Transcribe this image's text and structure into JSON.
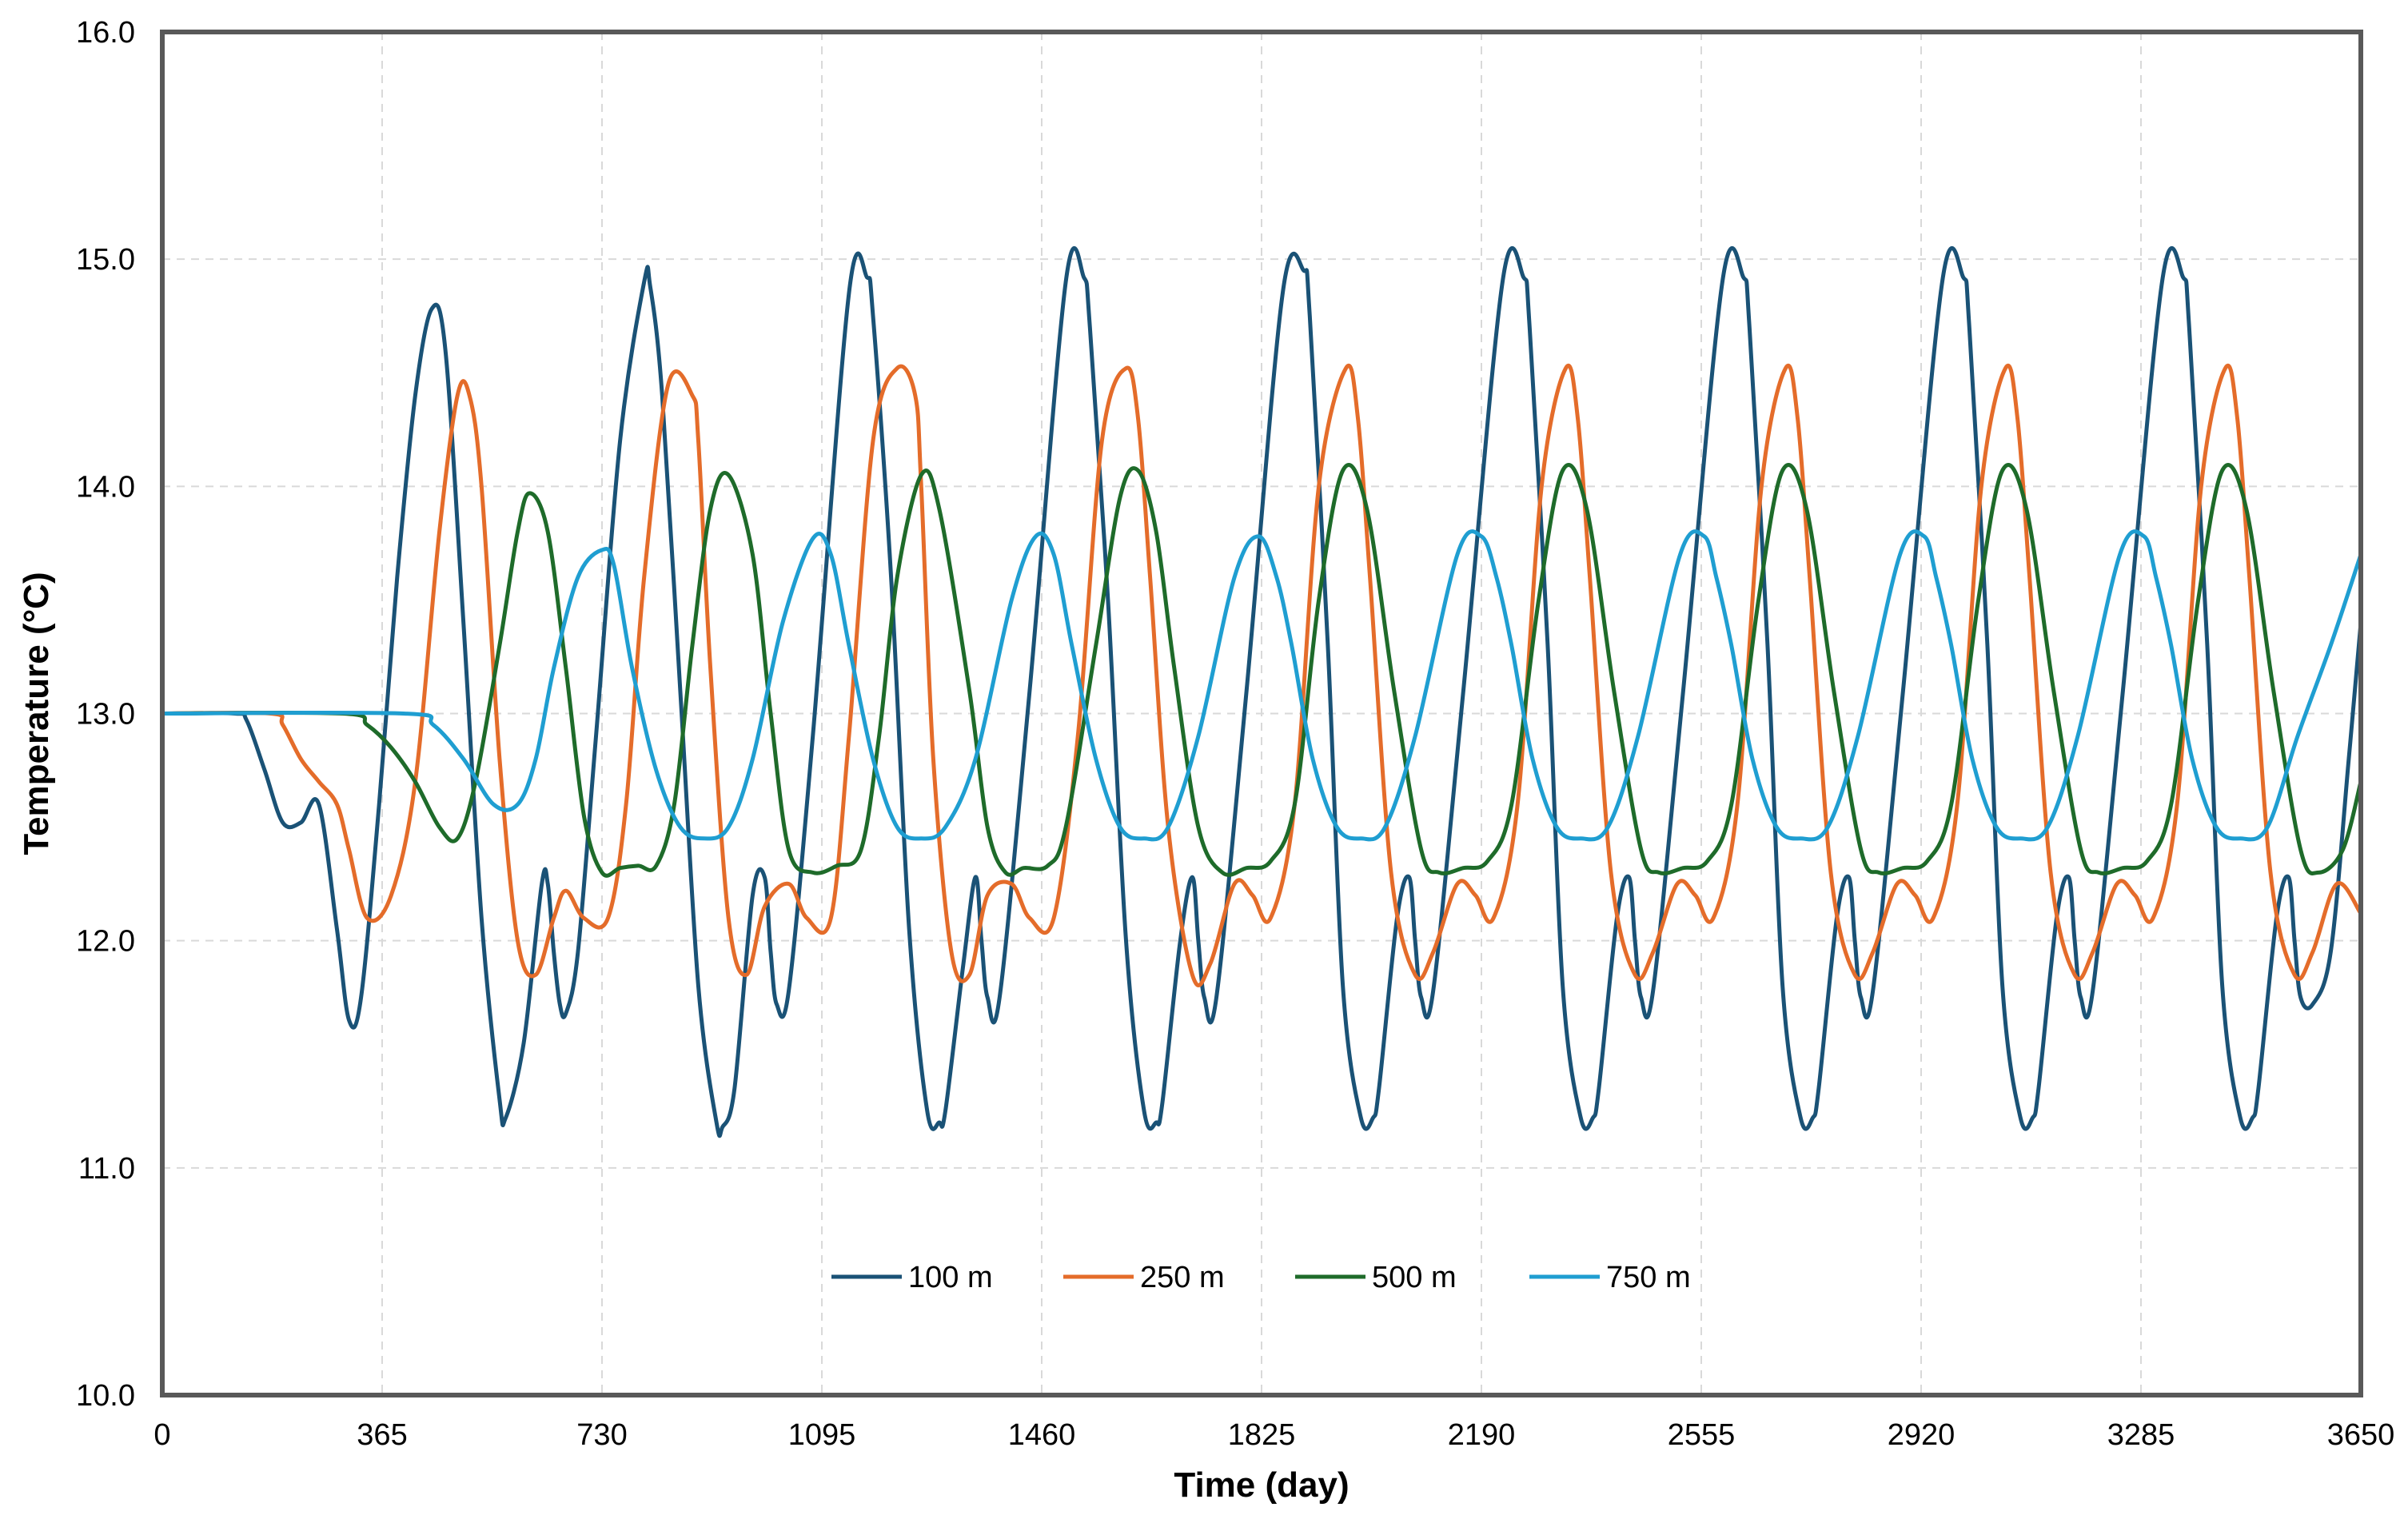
{
  "chart_data": {
    "type": "line",
    "xlabel": "Time (day)",
    "ylabel": "Temperature (°C)",
    "xlim": [
      0,
      3650
    ],
    "ylim": [
      10.0,
      16.0
    ],
    "x_ticks": [
      "0",
      "365",
      "730",
      "1095",
      "1460",
      "1825",
      "2190",
      "2555",
      "2920",
      "3285",
      "3650"
    ],
    "y_ticks": [
      "10.0",
      "11.0",
      "12.0",
      "13.0",
      "14.0",
      "15.0",
      "16.0"
    ],
    "grid": true,
    "legend_position": "lower-center inside plot",
    "series": [
      {
        "name": "100 m",
        "color": "#1a5276",
        "x": [
          0,
          120,
          140,
          170,
          200,
          230,
          260,
          290,
          310,
          330,
          360,
          390,
          420,
          447,
          470,
          500,
          530,
          560,
          570,
          600,
          630,
          640,
          650,
          660,
          670,
          690,
          720,
          760,
          800,
          810,
          830,
          860,
          890,
          920,
          930,
          950,
          980,
          1000,
          1010,
          1020,
          1040,
          1080,
          1140,
          1170,
          1180,
          1210,
          1240,
          1270,
          1290,
          1300,
          1330,
          1350,
          1360,
          1370,
          1390,
          1440,
          1500,
          1530,
          1540,
          1570,
          1600,
          1630,
          1650,
          1660,
          1690,
          1710,
          1720,
          1730,
          1750,
          1800,
          1860,
          1895,
          1905,
          1935,
          1960,
          1990,
          2010,
          2020,
          2050,
          2070,
          2080,
          2090,
          2110,
          2160,
          2225,
          2260,
          2270,
          2300,
          2325,
          2355,
          2375,
          2385,
          2415,
          2435,
          2445,
          2455,
          2475,
          2525,
          2590,
          2625,
          2635,
          2665,
          2690,
          2720,
          2740,
          2750,
          2780,
          2800,
          2810,
          2820,
          2840,
          2890,
          2955,
          2990,
          3000,
          3030,
          3055,
          3085,
          3105,
          3115,
          3145,
          3165,
          3175,
          3185,
          3205,
          3255,
          3320,
          3355,
          3365,
          3395,
          3420,
          3450,
          3470,
          3480,
          3510,
          3530,
          3540,
          3550,
          3570,
          3600,
          3630,
          3650
        ],
        "y": [
          13.0,
          13.0,
          12.97,
          12.75,
          12.52,
          12.52,
          12.6,
          12.05,
          11.65,
          11.75,
          12.6,
          13.6,
          14.4,
          14.78,
          14.6,
          13.4,
          12.1,
          11.3,
          11.22,
          11.55,
          12.25,
          12.25,
          11.95,
          11.72,
          11.68,
          11.95,
          12.9,
          14.2,
          14.9,
          14.88,
          14.4,
          13.1,
          11.8,
          11.2,
          11.18,
          11.35,
          12.2,
          12.28,
          11.95,
          11.72,
          11.78,
          12.9,
          14.85,
          14.92,
          14.75,
          13.6,
          12.05,
          11.25,
          11.2,
          11.25,
          11.9,
          12.28,
          12.0,
          11.75,
          11.75,
          13.1,
          14.9,
          14.92,
          14.7,
          13.5,
          12.0,
          11.25,
          11.2,
          11.28,
          12.0,
          12.28,
          12.0,
          11.75,
          11.75,
          13.1,
          14.85,
          14.95,
          14.75,
          13.3,
          11.8,
          11.22,
          11.22,
          11.35,
          12.1,
          12.28,
          12.0,
          11.75,
          11.78,
          13.1,
          14.9,
          14.92,
          14.7,
          13.3,
          11.8,
          11.22,
          11.22,
          11.35,
          12.1,
          12.28,
          12.0,
          11.75,
          11.78,
          13.1,
          14.9,
          14.92,
          14.7,
          13.3,
          11.8,
          11.22,
          11.22,
          11.35,
          12.1,
          12.28,
          12.0,
          11.75,
          11.78,
          13.1,
          14.9,
          14.92,
          14.7,
          13.3,
          11.8,
          11.22,
          11.22,
          11.35,
          12.1,
          12.28,
          12.0,
          11.75,
          11.78,
          13.1,
          14.9,
          14.92,
          14.7,
          13.3,
          11.8,
          11.22,
          11.22,
          11.35,
          12.1,
          12.28,
          12.0,
          11.75,
          11.72,
          11.95,
          12.8,
          13.4
        ]
      },
      {
        "name": "250 m",
        "color": "#e46c2a",
        "x": [
          0,
          180,
          200,
          230,
          260,
          290,
          310,
          340,
          380,
          420,
          460,
          490,
          510,
          530,
          560,
          590,
          620,
          650,
          670,
          700,
          740,
          770,
          800,
          840,
          880,
          890,
          910,
          940,
          970,
          1000,
          1040,
          1070,
          1110,
          1140,
          1180,
          1220,
          1250,
          1260,
          1280,
          1310,
          1340,
          1370,
          1410,
          1440,
          1480,
          1520,
          1560,
          1600,
          1620,
          1640,
          1670,
          1710,
          1740,
          1780,
          1810,
          1840,
          1880,
          1920,
          1965,
          1985,
          2005,
          2040,
          2080,
          2110,
          2150,
          2180,
          2210,
          2250,
          2290,
          2330,
          2350,
          2370,
          2405,
          2445,
          2475,
          2515,
          2545,
          2575,
          2615,
          2655,
          2695,
          2715,
          2735,
          2770,
          2810,
          2840,
          2880,
          2910,
          2940,
          2980,
          3020,
          3060,
          3080,
          3100,
          3135,
          3175,
          3205,
          3245,
          3275,
          3305,
          3345,
          3385,
          3425,
          3445,
          3465,
          3500,
          3540,
          3570,
          3610,
          3650
        ],
        "y": [
          13.0,
          13.0,
          12.95,
          12.8,
          12.7,
          12.6,
          12.4,
          12.1,
          12.2,
          12.7,
          13.8,
          14.4,
          14.4,
          14.0,
          12.8,
          12.0,
          11.85,
          12.1,
          12.22,
          12.1,
          12.1,
          12.6,
          13.6,
          14.45,
          14.4,
          14.2,
          13.2,
          12.1,
          11.85,
          12.15,
          12.25,
          12.1,
          12.1,
          12.9,
          14.2,
          14.52,
          14.4,
          14.0,
          12.8,
          11.95,
          11.85,
          12.2,
          12.25,
          12.1,
          12.1,
          12.9,
          14.2,
          14.52,
          14.3,
          13.6,
          12.5,
          11.85,
          11.9,
          12.25,
          12.2,
          12.1,
          12.6,
          14.0,
          14.52,
          14.3,
          13.6,
          12.3,
          11.85,
          11.95,
          12.25,
          12.2,
          12.1,
          12.6,
          14.0,
          14.52,
          14.3,
          13.6,
          12.3,
          11.85,
          11.95,
          12.25,
          12.2,
          12.1,
          12.6,
          14.0,
          14.52,
          14.3,
          13.6,
          12.3,
          11.85,
          11.95,
          12.25,
          12.2,
          12.1,
          12.6,
          14.0,
          14.52,
          14.3,
          13.6,
          12.3,
          11.85,
          11.95,
          12.25,
          12.2,
          12.1,
          12.6,
          14.0,
          14.52,
          14.3,
          13.6,
          12.3,
          11.85,
          11.95,
          12.25,
          12.12
        ]
      },
      {
        "name": "500 m",
        "color": "#1e6b2a",
        "x": [
          0,
          300,
          340,
          380,
          420,
          460,
          490,
          520,
          560,
          590,
          610,
          640,
          670,
          700,
          730,
          760,
          790,
          820,
          850,
          880,
          910,
          940,
          980,
          1010,
          1040,
          1080,
          1120,
          1160,
          1190,
          1220,
          1260,
          1290,
          1340,
          1370,
          1400,
          1430,
          1470,
          1500,
          1550,
          1590,
          1620,
          1650,
          1680,
          1720,
          1760,
          1800,
          1840,
          1880,
          1920,
          1960,
          2000,
          2045,
          2090,
          2120,
          2160,
          2200,
          2240,
          2285,
          2325,
          2365,
          2410,
          2455,
          2485,
          2525,
          2565,
          2605,
          2650,
          2690,
          2730,
          2775,
          2820,
          2850,
          2890,
          2930,
          2970,
          3015,
          3055,
          3095,
          3140,
          3185,
          3215,
          3255,
          3295,
          3335,
          3380,
          3420,
          3460,
          3505,
          3550,
          3580,
          3620,
          3650
        ],
        "y": [
          13.0,
          13.0,
          12.95,
          12.85,
          12.7,
          12.5,
          12.45,
          12.7,
          13.3,
          13.8,
          13.97,
          13.8,
          13.2,
          12.55,
          12.3,
          12.32,
          12.33,
          12.33,
          12.6,
          13.3,
          13.9,
          14.05,
          13.7,
          13.0,
          12.4,
          12.3,
          12.33,
          12.4,
          12.9,
          13.6,
          14.05,
          13.9,
          13.1,
          12.5,
          12.3,
          12.32,
          12.33,
          12.5,
          13.3,
          13.95,
          14.07,
          13.8,
          13.2,
          12.5,
          12.3,
          12.32,
          12.35,
          12.6,
          13.5,
          14.07,
          13.9,
          13.1,
          12.4,
          12.3,
          12.32,
          12.35,
          12.6,
          13.5,
          14.07,
          13.9,
          13.1,
          12.4,
          12.3,
          12.32,
          12.35,
          12.6,
          13.5,
          14.07,
          13.9,
          13.1,
          12.4,
          12.3,
          12.32,
          12.35,
          12.6,
          13.5,
          14.07,
          13.9,
          13.1,
          12.4,
          12.3,
          12.32,
          12.35,
          12.6,
          13.5,
          14.07,
          13.9,
          13.1,
          12.4,
          12.3,
          12.4,
          12.7
        ]
      },
      {
        "name": "750 m",
        "color": "#1f9ed1",
        "x": [
          0,
          400,
          450,
          500,
          550,
          590,
          620,
          650,
          690,
          730,
          750,
          780,
          820,
          860,
          900,
          940,
          980,
          1030,
          1080,
          1110,
          1140,
          1180,
          1220,
          1260,
          1300,
          1350,
          1410,
          1450,
          1480,
          1510,
          1550,
          1590,
          1630,
          1670,
          1720,
          1780,
          1820,
          1850,
          1875,
          1910,
          1950,
          1990,
          2030,
          2080,
          2150,
          2190,
          2215,
          2240,
          2275,
          2315,
          2355,
          2400,
          2450,
          2520,
          2560,
          2580,
          2605,
          2640,
          2680,
          2720,
          2765,
          2815,
          2885,
          2925,
          2945,
          2970,
          3005,
          3045,
          3085,
          3130,
          3180,
          3250,
          3290,
          3310,
          3335,
          3370,
          3410,
          3450,
          3495,
          3545,
          3600,
          3650
        ],
        "y": [
          13.0,
          13.0,
          12.95,
          12.8,
          12.6,
          12.6,
          12.8,
          13.2,
          13.6,
          13.72,
          13.65,
          13.2,
          12.75,
          12.5,
          12.45,
          12.5,
          12.8,
          13.4,
          13.77,
          13.7,
          13.3,
          12.8,
          12.5,
          12.45,
          12.5,
          12.8,
          13.5,
          13.78,
          13.7,
          13.3,
          12.8,
          12.5,
          12.45,
          12.5,
          12.9,
          13.6,
          13.78,
          13.6,
          13.3,
          12.8,
          12.5,
          12.45,
          12.5,
          12.9,
          13.7,
          13.78,
          13.6,
          13.3,
          12.8,
          12.5,
          12.45,
          12.5,
          12.9,
          13.7,
          13.78,
          13.6,
          13.3,
          12.8,
          12.5,
          12.45,
          12.5,
          12.9,
          13.7,
          13.78,
          13.6,
          13.3,
          12.8,
          12.5,
          12.45,
          12.5,
          12.9,
          13.7,
          13.78,
          13.6,
          13.3,
          12.8,
          12.5,
          12.45,
          12.5,
          12.9,
          13.3,
          13.7
        ]
      }
    ]
  }
}
